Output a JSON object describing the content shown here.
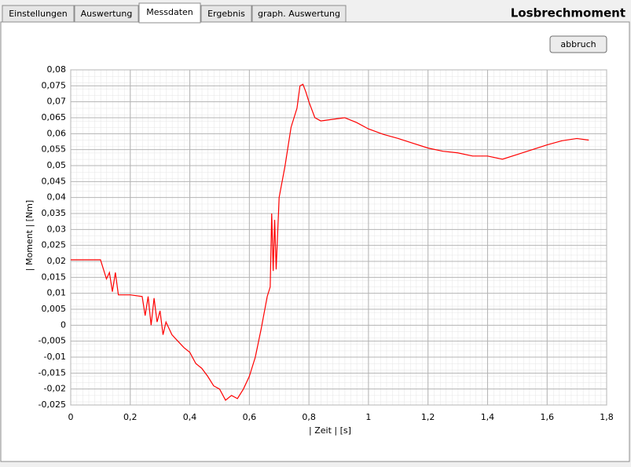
{
  "tabs": [
    "Einstellungen",
    "Auswertung",
    "Messdaten",
    "Ergebnis",
    "graph. Auswertung"
  ],
  "selected_tab": "Messdaten",
  "title": "Losbrechmoment",
  "button": "abbruch",
  "chart_data": {
    "type": "line",
    "xlabel": "| Zeit | [s]",
    "ylabel": "| Moment |  [Nm]",
    "grid": true,
    "xlim": [
      0,
      1.8
    ],
    "ylim": [
      -0.025,
      0.08
    ],
    "xticks": [
      0,
      {
        "value": 0.2,
        "label": "0,2"
      },
      {
        "value": 0.4,
        "label": "0,4"
      },
      {
        "value": 0.6,
        "label": "0,6"
      },
      {
        "value": 0.8,
        "label": "0,8"
      },
      1,
      {
        "value": 1.2,
        "label": "1,2"
      },
      {
        "value": 1.4,
        "label": "1,4"
      },
      {
        "value": 1.6,
        "label": "1,6"
      },
      {
        "value": 1.8,
        "label": "1,8"
      }
    ],
    "yticks": [
      {
        "value": -0.025,
        "label": "-0,025"
      },
      {
        "value": -0.02,
        "label": "-0,02"
      },
      {
        "value": -0.015,
        "label": "-0,015"
      },
      {
        "value": -0.01,
        "label": "-0,01"
      },
      {
        "value": -0.005,
        "label": "-0,005"
      },
      0,
      {
        "value": 0.005,
        "label": "0,005"
      },
      {
        "value": 0.01,
        "label": "0,01"
      },
      {
        "value": 0.015,
        "label": "0,015"
      },
      {
        "value": 0.02,
        "label": "0,02"
      },
      {
        "value": 0.025,
        "label": "0,025"
      },
      {
        "value": 0.03,
        "label": "0,03"
      },
      {
        "value": 0.035,
        "label": "0,035"
      },
      {
        "value": 0.04,
        "label": "0,04"
      },
      {
        "value": 0.045,
        "label": "0,045"
      },
      {
        "value": 0.05,
        "label": "0,05"
      },
      {
        "value": 0.055,
        "label": "0,055"
      },
      {
        "value": 0.06,
        "label": "0,06"
      },
      {
        "value": 0.065,
        "label": "0,065"
      },
      {
        "value": 0.07,
        "label": "0,07"
      },
      {
        "value": 0.075,
        "label": "0,075"
      },
      {
        "value": 0.08,
        "label": "0,08"
      }
    ],
    "x": [
      0,
      0.05,
      0.1,
      0.11,
      0.12,
      0.13,
      0.14,
      0.15,
      0.16,
      0.2,
      0.24,
      0.25,
      0.26,
      0.27,
      0.28,
      0.29,
      0.3,
      0.31,
      0.32,
      0.34,
      0.36,
      0.38,
      0.4,
      0.42,
      0.44,
      0.46,
      0.48,
      0.5,
      0.52,
      0.54,
      0.56,
      0.58,
      0.6,
      0.62,
      0.64,
      0.66,
      0.67,
      0.675,
      0.68,
      0.685,
      0.69,
      0.7,
      0.72,
      0.74,
      0.76,
      0.77,
      0.78,
      0.79,
      0.8,
      0.82,
      0.84,
      0.88,
      0.92,
      0.96,
      1.0,
      1.05,
      1.1,
      1.15,
      1.2,
      1.25,
      1.3,
      1.35,
      1.4,
      1.45,
      1.5,
      1.55,
      1.6,
      1.65,
      1.7,
      1.74
    ],
    "series": [
      {
        "name": "Moment",
        "color": "#ff0000",
        "values": [
          0.0205,
          0.0205,
          0.0205,
          0.0175,
          0.0145,
          0.0165,
          0.0105,
          0.0165,
          0.0095,
          0.0095,
          0.009,
          0.003,
          0.009,
          0.0,
          0.0085,
          0.001,
          0.0045,
          -0.003,
          0.001,
          -0.003,
          -0.005,
          -0.007,
          -0.0085,
          -0.012,
          -0.0135,
          -0.016,
          -0.019,
          -0.02,
          -0.0235,
          -0.022,
          -0.023,
          -0.02,
          -0.016,
          -0.01,
          -0.001,
          0.009,
          0.012,
          0.035,
          0.017,
          0.033,
          0.0175,
          0.04,
          0.05,
          0.062,
          0.068,
          0.075,
          0.0755,
          0.073,
          0.07,
          0.065,
          0.064,
          0.0645,
          0.065,
          0.0635,
          0.0615,
          0.0598,
          0.0585,
          0.057,
          0.0555,
          0.0545,
          0.054,
          0.053,
          0.053,
          0.052,
          0.0535,
          0.055,
          0.0565,
          0.0578,
          0.0585,
          0.058
        ]
      }
    ]
  }
}
